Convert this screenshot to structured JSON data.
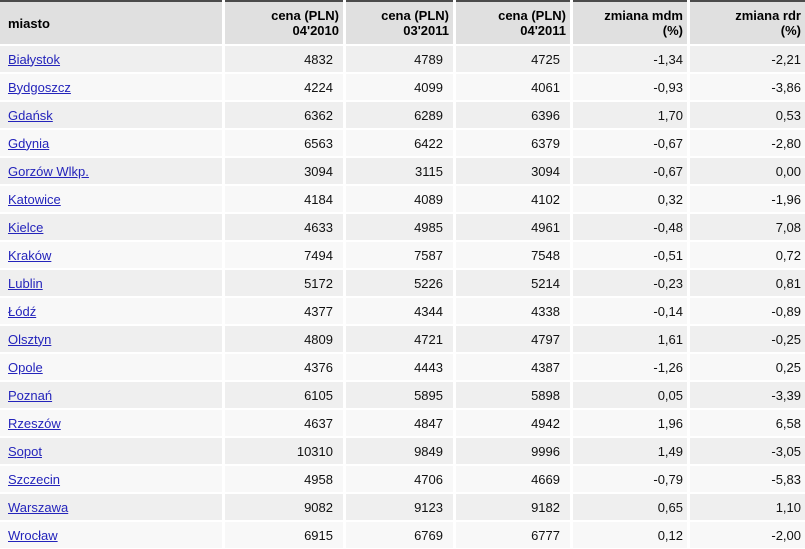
{
  "colors": {
    "link": "#2424bb",
    "header_bg": "#e0e0e0",
    "header_top_border": "#4b4b4b",
    "row_shade": "#efefef",
    "row_light": "#f8f8f8"
  },
  "table": {
    "columns": [
      {
        "line1": "miasto",
        "line2": ""
      },
      {
        "line1": "cena (PLN)",
        "line2": "04'2010"
      },
      {
        "line1": "cena (PLN)",
        "line2": "03'2011"
      },
      {
        "line1": "cena (PLN)",
        "line2": "04'2011"
      },
      {
        "line1": "zmiana mdm",
        "line2": "(%)"
      },
      {
        "line1": "zmiana rdr",
        "line2": "(%)"
      }
    ],
    "rows": [
      {
        "city": "Białystok",
        "price_04_2010": "4832",
        "price_03_2011": "4789",
        "price_04_2011": "4725",
        "change_mdm": "-1,34",
        "change_rdr": "-2,21"
      },
      {
        "city": "Bydgoszcz",
        "price_04_2010": "4224",
        "price_03_2011": "4099",
        "price_04_2011": "4061",
        "change_mdm": "-0,93",
        "change_rdr": "-3,86"
      },
      {
        "city": "Gdańsk",
        "price_04_2010": "6362",
        "price_03_2011": "6289",
        "price_04_2011": "6396",
        "change_mdm": "1,70",
        "change_rdr": "0,53"
      },
      {
        "city": "Gdynia",
        "price_04_2010": "6563",
        "price_03_2011": "6422",
        "price_04_2011": "6379",
        "change_mdm": "-0,67",
        "change_rdr": "-2,80"
      },
      {
        "city": "Gorzów Wlkp.",
        "price_04_2010": "3094",
        "price_03_2011": "3115",
        "price_04_2011": "3094",
        "change_mdm": "-0,67",
        "change_rdr": "0,00"
      },
      {
        "city": "Katowice",
        "price_04_2010": "4184",
        "price_03_2011": "4089",
        "price_04_2011": "4102",
        "change_mdm": "0,32",
        "change_rdr": "-1,96"
      },
      {
        "city": "Kielce",
        "price_04_2010": "4633",
        "price_03_2011": "4985",
        "price_04_2011": "4961",
        "change_mdm": "-0,48",
        "change_rdr": "7,08"
      },
      {
        "city": "Kraków",
        "price_04_2010": "7494",
        "price_03_2011": "7587",
        "price_04_2011": "7548",
        "change_mdm": "-0,51",
        "change_rdr": "0,72"
      },
      {
        "city": "Lublin",
        "price_04_2010": "5172",
        "price_03_2011": "5226",
        "price_04_2011": "5214",
        "change_mdm": "-0,23",
        "change_rdr": "0,81"
      },
      {
        "city": "Łódź",
        "price_04_2010": "4377",
        "price_03_2011": "4344",
        "price_04_2011": "4338",
        "change_mdm": "-0,14",
        "change_rdr": "-0,89"
      },
      {
        "city": "Olsztyn",
        "price_04_2010": "4809",
        "price_03_2011": "4721",
        "price_04_2011": "4797",
        "change_mdm": "1,61",
        "change_rdr": "-0,25"
      },
      {
        "city": "Opole",
        "price_04_2010": "4376",
        "price_03_2011": "4443",
        "price_04_2011": "4387",
        "change_mdm": "-1,26",
        "change_rdr": "0,25"
      },
      {
        "city": "Poznań",
        "price_04_2010": "6105",
        "price_03_2011": "5895",
        "price_04_2011": "5898",
        "change_mdm": "0,05",
        "change_rdr": "-3,39"
      },
      {
        "city": "Rzeszów",
        "price_04_2010": "4637",
        "price_03_2011": "4847",
        "price_04_2011": "4942",
        "change_mdm": "1,96",
        "change_rdr": "6,58"
      },
      {
        "city": "Sopot",
        "price_04_2010": "10310",
        "price_03_2011": "9849",
        "price_04_2011": "9996",
        "change_mdm": "1,49",
        "change_rdr": "-3,05"
      },
      {
        "city": "Szczecin",
        "price_04_2010": "4958",
        "price_03_2011": "4706",
        "price_04_2011": "4669",
        "change_mdm": "-0,79",
        "change_rdr": "-5,83"
      },
      {
        "city": "Warszawa",
        "price_04_2010": "9082",
        "price_03_2011": "9123",
        "price_04_2011": "9182",
        "change_mdm": "0,65",
        "change_rdr": "1,10"
      },
      {
        "city": "Wrocław",
        "price_04_2010": "6915",
        "price_03_2011": "6769",
        "price_04_2011": "6777",
        "change_mdm": "0,12",
        "change_rdr": "-2,00"
      }
    ]
  }
}
